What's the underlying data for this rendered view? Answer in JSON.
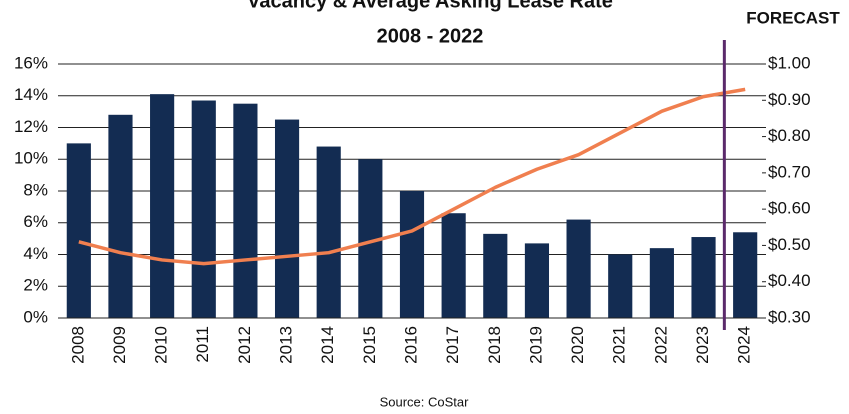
{
  "chart_data": {
    "type": "bar",
    "title": "Vacancy & Average Asking Lease Rate",
    "subtitle": "2008 - 2022",
    "annotation": "FORECAST",
    "source": "Source: CoStar",
    "categories": [
      "2008",
      "2009",
      "2010",
      "2011",
      "2012",
      "2013",
      "2014",
      "2015",
      "2016",
      "2017",
      "2018",
      "2019",
      "2020",
      "2021",
      "2022",
      "2023",
      "2024"
    ],
    "series": [
      {
        "type": "bar",
        "color": "#132c52",
        "values": [
          11.0,
          12.8,
          14.1,
          13.7,
          13.5,
          12.5,
          10.8,
          10.0,
          8.0,
          6.6,
          5.3,
          4.7,
          6.2,
          4.0,
          4.4,
          5.1,
          5.4
        ]
      },
      {
        "type": "line",
        "axis": "y2",
        "color": "#f07f4f",
        "values": [
          0.51,
          0.48,
          0.46,
          0.45,
          0.46,
          0.47,
          0.48,
          0.51,
          0.54,
          0.6,
          0.66,
          0.71,
          0.75,
          0.81,
          0.87,
          0.91,
          0.93
        ]
      }
    ],
    "ylim": [
      0,
      16
    ],
    "yticks": [
      {
        "value": 0,
        "label": "0%"
      },
      {
        "value": 2,
        "label": "2%"
      },
      {
        "value": 4,
        "label": "4%"
      },
      {
        "value": 6,
        "label": "6%"
      },
      {
        "value": 8,
        "label": "8%"
      },
      {
        "value": 10,
        "label": "10%"
      },
      {
        "value": 12,
        "label": "12%"
      },
      {
        "value": 14,
        "label": "14%"
      },
      {
        "value": 16,
        "label": "16%"
      }
    ],
    "y2lim": [
      0.3,
      1.0
    ],
    "y2ticks": [
      {
        "value": 0.3,
        "label": "$0.30"
      },
      {
        "value": 0.4,
        "label": "$0.40"
      },
      {
        "value": 0.5,
        "label": "$0.50"
      },
      {
        "value": 0.6,
        "label": "$0.60"
      },
      {
        "value": 0.7,
        "label": "$0.70"
      },
      {
        "value": 0.8,
        "label": "$0.80"
      },
      {
        "value": 0.9,
        "label": "$0.90"
      },
      {
        "value": 1.0,
        "label": "$1.00"
      }
    ],
    "grid": true,
    "forecast_color": "#5b2a6b"
  }
}
